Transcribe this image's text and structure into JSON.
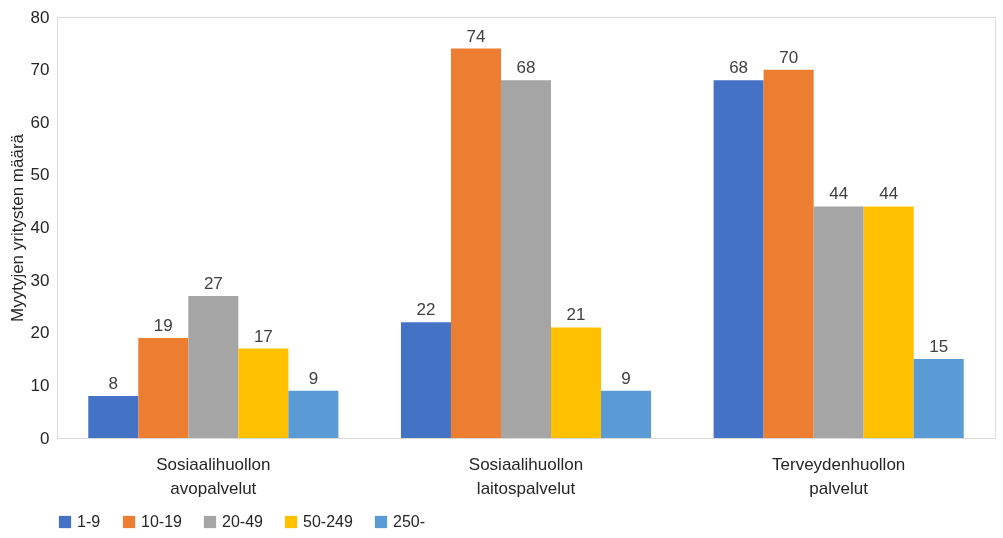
{
  "chart_data": {
    "type": "bar",
    "ylabel": "Myytyjen yritysten määrä",
    "categories": [
      "Sosiaalihuollon avopalvelut",
      "Sosiaalihuollon laitospalvelut",
      "Terveydenhuollon palvelut"
    ],
    "series": [
      {
        "name": "1-9",
        "color": "#4472c4",
        "values": [
          8,
          22,
          68
        ]
      },
      {
        "name": "10-19",
        "color": "#ed7d31",
        "values": [
          19,
          74,
          70
        ]
      },
      {
        "name": "20-49",
        "color": "#a5a5a5",
        "values": [
          27,
          68,
          44
        ]
      },
      {
        "name": "50-249",
        "color": "#ffc000",
        "values": [
          17,
          21,
          44
        ]
      },
      {
        "name": "250-",
        "color": "#5b9bd5",
        "values": [
          9,
          9,
          15
        ]
      }
    ],
    "ylim": [
      0,
      80
    ],
    "yticks": [
      0,
      10,
      20,
      30,
      40,
      50,
      60,
      70,
      80
    ],
    "grid": false,
    "legend": "bottom",
    "data_labels": true
  }
}
